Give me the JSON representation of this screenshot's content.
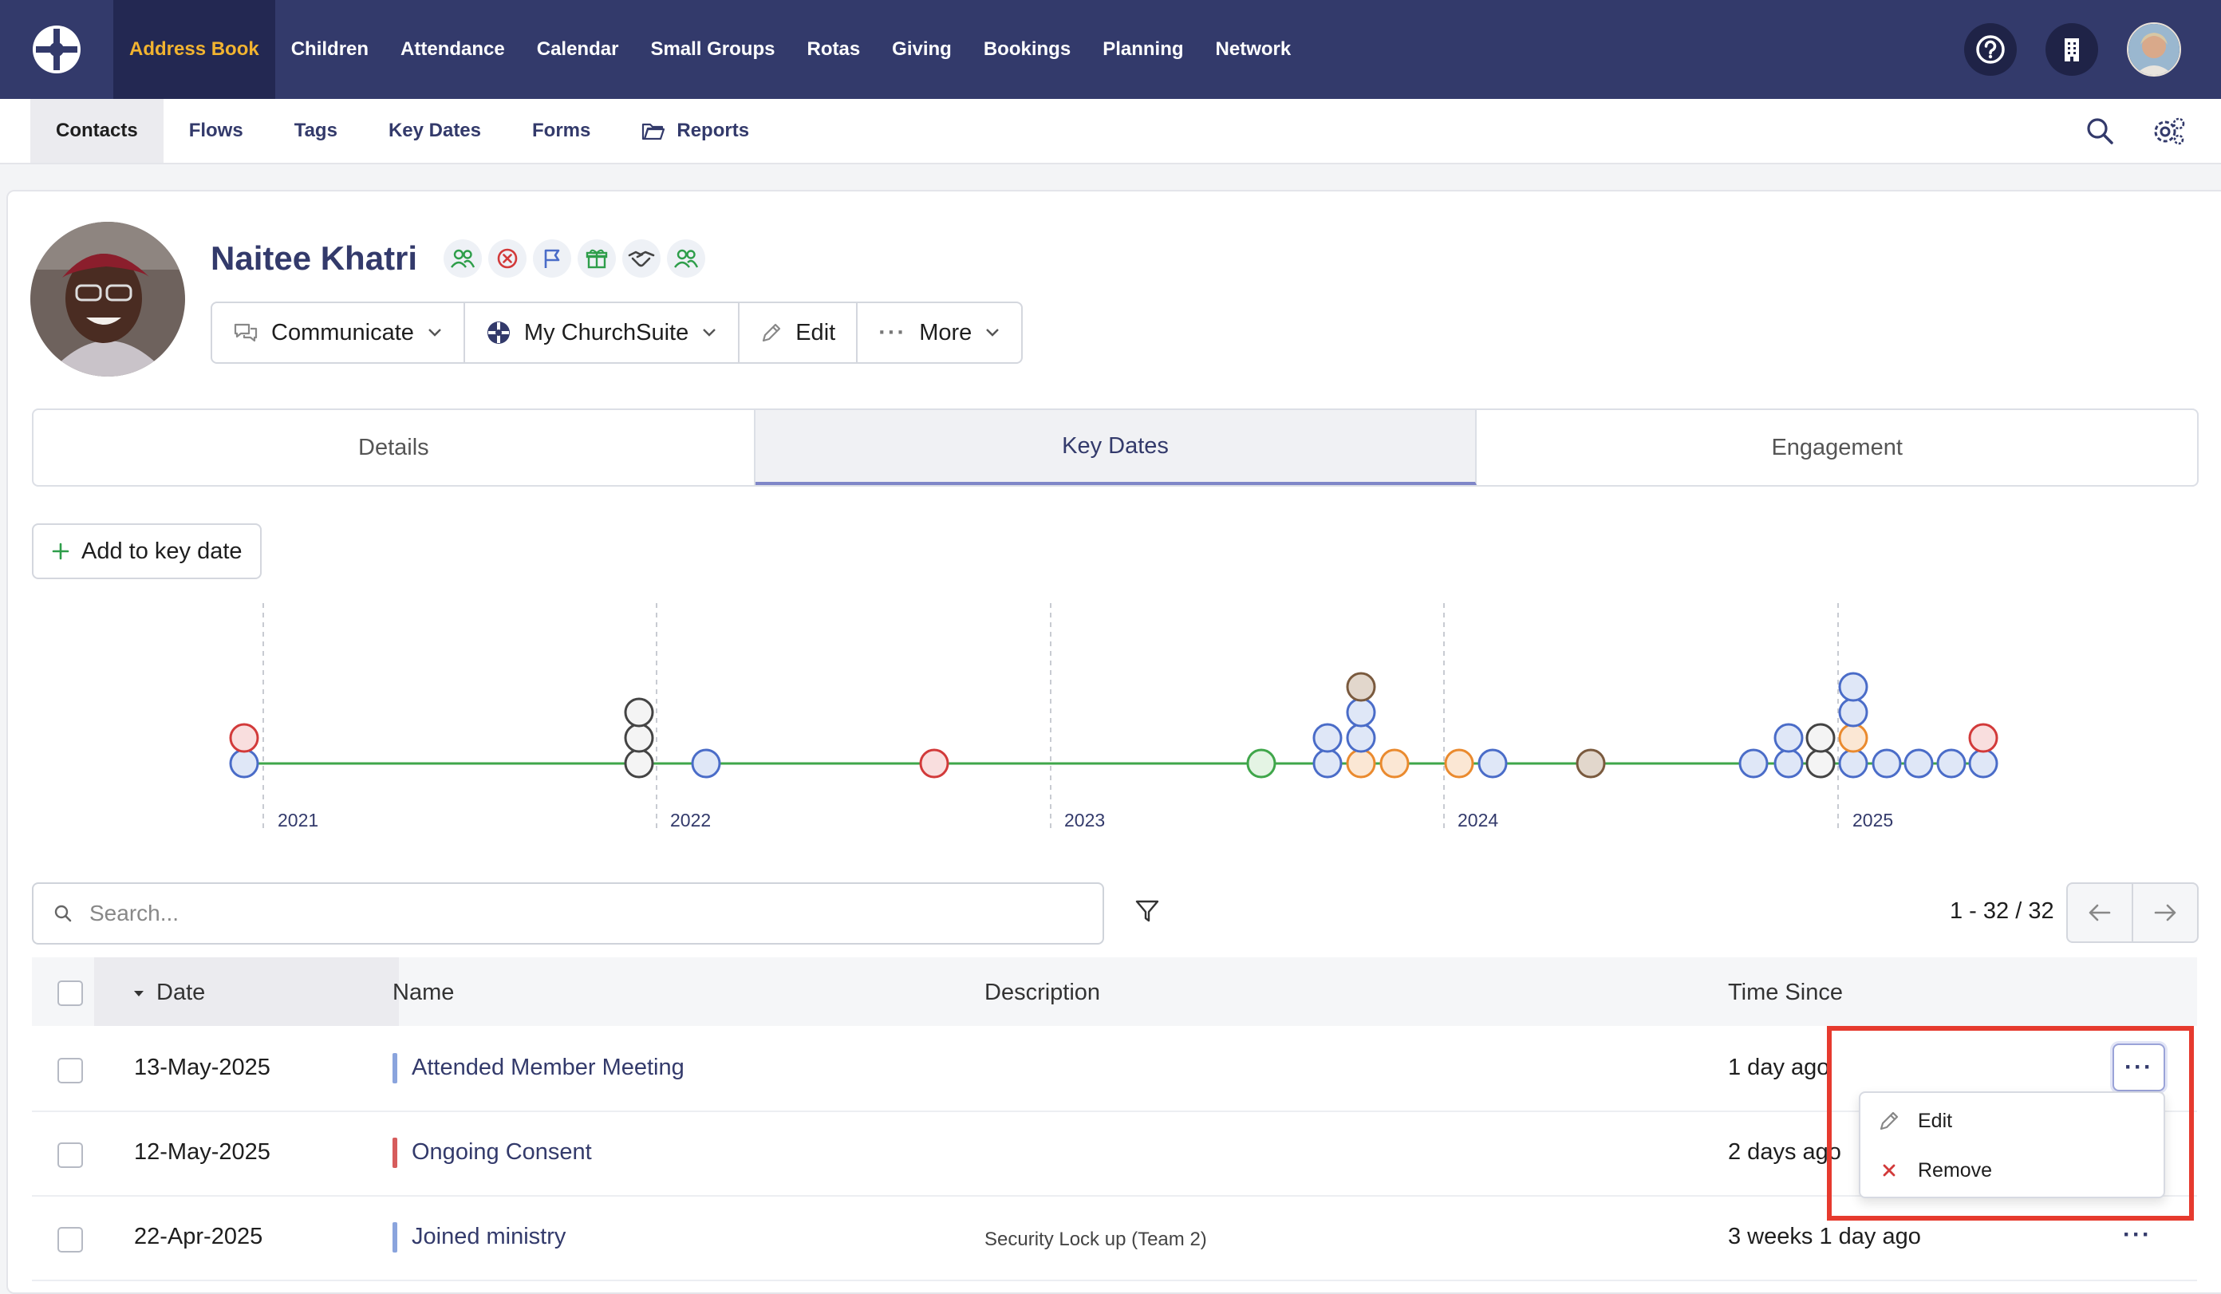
{
  "topnav": {
    "items": [
      "Address Book",
      "Children",
      "Attendance",
      "Calendar",
      "Small Groups",
      "Rotas",
      "Giving",
      "Bookings",
      "Planning",
      "Network"
    ],
    "active_index": 0,
    "icons": [
      "help-icon",
      "building-icon",
      "user-avatar"
    ],
    "colors": {
      "bg": "#333a6b",
      "active_bg": "#232852",
      "active_text": "#f2b430"
    }
  },
  "subnav": {
    "items": [
      "Contacts",
      "Flows",
      "Tags",
      "Key Dates",
      "Forms",
      "Reports"
    ],
    "active_index": 0,
    "icons": [
      "search-icon",
      "settings-icon"
    ]
  },
  "person": {
    "name": "Naitee Khatri",
    "badges": [
      "group-icon",
      "cancel-icon",
      "flag-icon",
      "gift-icon",
      "handshake-icon",
      "group-icon"
    ]
  },
  "actions": {
    "communicate": "Communicate",
    "churchsuite": "My ChurchSuite",
    "edit": "Edit",
    "more": "More"
  },
  "tabs": [
    "Details",
    "Key Dates",
    "Engagement"
  ],
  "active_tab": 1,
  "add_button": "Add to key date",
  "timeline": {
    "years": [
      "2021",
      "2022",
      "2023",
      "2024",
      "2025"
    ],
    "colors": {
      "blue": "#4a6cc8",
      "red": "#d23a3a",
      "grey": "#444",
      "orange": "#ea8a2e",
      "green": "#3fa64a",
      "brown": "#7a5a3e"
    }
  },
  "search": {
    "placeholder": "Search..."
  },
  "pagination": {
    "range": "1 - 32",
    "total": "/ 32"
  },
  "table": {
    "columns": [
      "Date",
      "Name",
      "Description",
      "Time Since"
    ],
    "rows": [
      {
        "date": "13-May-2025",
        "name": "Attended Member Meeting",
        "description": "",
        "time_since": "1 day ago",
        "color": "#8aa4dd"
      },
      {
        "date": "12-May-2025",
        "name": "Ongoing Consent",
        "description": "",
        "time_since": "2 days ago",
        "color": "#d65c5c"
      },
      {
        "date": "22-Apr-2025",
        "name": "Joined ministry",
        "description": "Security Lock up (Team 2)",
        "time_since": "3 weeks 1 day ago",
        "color": "#8aa4dd"
      }
    ]
  },
  "row_menu": {
    "edit": "Edit",
    "remove": "Remove"
  }
}
